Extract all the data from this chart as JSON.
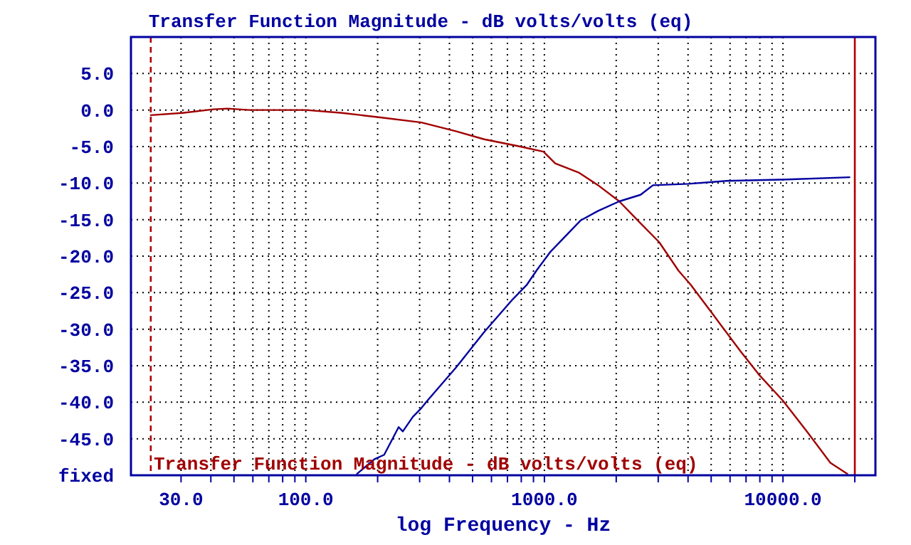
{
  "chart_data": {
    "type": "line",
    "title": "Transfer Function Magnitude - dB volts/volts (eq)",
    "xlabel": "log Frequency - Hz",
    "log": "x",
    "grid": true,
    "xlim": [
      18.5,
      24400
    ],
    "xticks": [
      {
        "value": 30,
        "label": "30.0"
      },
      {
        "value": 40,
        "label": null
      },
      {
        "value": 50,
        "label": null
      },
      {
        "value": 60,
        "label": null
      },
      {
        "value": 70,
        "label": null
      },
      {
        "value": 80,
        "label": null
      },
      {
        "value": 90,
        "label": null
      },
      {
        "value": 100,
        "label": "100.0"
      },
      {
        "value": 200,
        "label": null
      },
      {
        "value": 300,
        "label": null
      },
      {
        "value": 400,
        "label": null
      },
      {
        "value": 500,
        "label": null
      },
      {
        "value": 600,
        "label": null
      },
      {
        "value": 700,
        "label": null
      },
      {
        "value": 800,
        "label": null
      },
      {
        "value": 900,
        "label": null
      },
      {
        "value": 1000,
        "label": "1000.0"
      },
      {
        "value": 2000,
        "label": null
      },
      {
        "value": 3000,
        "label": null
      },
      {
        "value": 4000,
        "label": null
      },
      {
        "value": 5000,
        "label": null
      },
      {
        "value": 6000,
        "label": null
      },
      {
        "value": 7000,
        "label": null
      },
      {
        "value": 8000,
        "label": null
      },
      {
        "value": 9000,
        "label": null
      },
      {
        "value": 10000,
        "label": "10000.0"
      },
      {
        "value": 20000,
        "label": null
      }
    ],
    "ylim": [
      -50,
      10
    ],
    "yticks": [
      {
        "value": 5,
        "label": "5.0"
      },
      {
        "value": 0,
        "label": "0.0"
      },
      {
        "value": -5,
        "label": "-5.0"
      },
      {
        "value": -10,
        "label": "-10.0"
      },
      {
        "value": -15,
        "label": "-15.0"
      },
      {
        "value": -20,
        "label": "-20.0"
      },
      {
        "value": -25,
        "label": "-25.0"
      },
      {
        "value": -30,
        "label": "-30.0"
      },
      {
        "value": -35,
        "label": "-35.0"
      },
      {
        "value": -40,
        "label": "-40.0"
      },
      {
        "value": -45,
        "label": "-45.0"
      },
      {
        "value": -50,
        "label": "fixed"
      }
    ],
    "ref_lines": [
      {
        "axis": "x",
        "value": 22.4,
        "color": "#b00000",
        "line_style": "dashed"
      },
      {
        "axis": "x",
        "value": 20000,
        "color": "#b00000",
        "line_style": "solid"
      }
    ],
    "annotations": [
      "Transfer Function Magnitude - dB volts/volts (eq)"
    ],
    "series": [
      {
        "color": "#a00000",
        "x": [
          22.4,
          30.4,
          41,
          47,
          58,
          82,
          100,
          142,
          205,
          305,
          425,
          559,
          767,
          991,
          1110,
          1400,
          1680,
          2060,
          2530,
          3030,
          3650,
          4100,
          5040,
          6630,
          7920,
          10000,
          12600,
          15800,
          18600
        ],
        "values": [
          -0.7,
          -0.4,
          0.1,
          0.2,
          0.0,
          0.0,
          0.0,
          -0.4,
          -1.0,
          -1.7,
          -2.9,
          -4.0,
          -4.9,
          -5.7,
          -7.3,
          -8.6,
          -10.3,
          -12.5,
          -15.5,
          -18.1,
          -22.0,
          -23.9,
          -27.8,
          -33.0,
          -36.2,
          -39.8,
          -44.0,
          -48.3,
          -49.8
        ]
      },
      {
        "color": "#0000a0",
        "x": [
          164,
          194,
          213,
          245,
          255,
          281,
          305,
          323,
          425,
          559,
          737,
          845,
          930,
          1060,
          1420,
          1680,
          2060,
          2530,
          2850,
          4010,
          5780,
          10400,
          19000
        ],
        "values": [
          -49.8,
          -47.8,
          -47.2,
          -43.4,
          -44.0,
          -42.0,
          -40.8,
          -39.8,
          -35.3,
          -30.4,
          -25.9,
          -23.9,
          -21.9,
          -19.4,
          -15.1,
          -13.8,
          -12.5,
          -11.6,
          -10.3,
          -10.1,
          -9.7,
          -9.5,
          -9.2
        ]
      }
    ]
  }
}
